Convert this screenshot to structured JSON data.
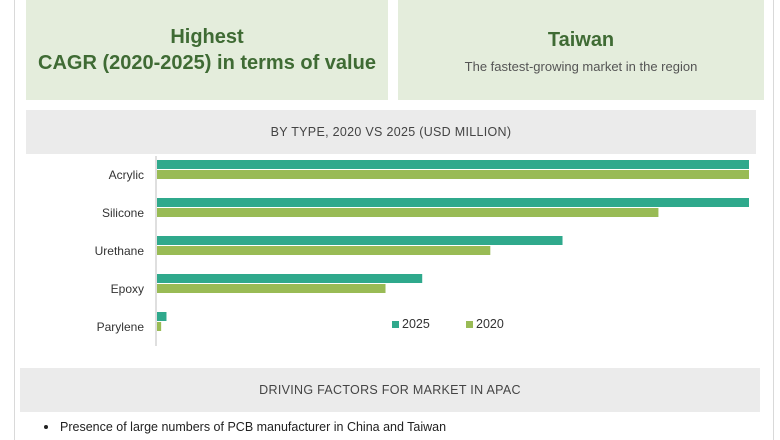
{
  "cards": [
    {
      "title_lines": [
        "Highest",
        "CAGR (2020-2025) in terms of value"
      ],
      "subtitle": ""
    },
    {
      "title_lines": [
        "Taiwan"
      ],
      "subtitle": "The fastest-growing market in the region"
    }
  ],
  "chart_title": "BY TYPE, 2020 VS 2025 (USD MILLION)",
  "chart_data": {
    "type": "bar",
    "orientation": "horizontal",
    "title": "BY TYPE, 2020 VS 2025 (USD MILLION)",
    "categories": [
      "Acrylic",
      "Silicone",
      "Urethane",
      "Epoxy",
      "Parylene"
    ],
    "series": [
      {
        "name": "2025",
        "color": "#2fa98c",
        "values": [
          100,
          100,
          68.5,
          44.8,
          1.6
        ]
      },
      {
        "name": "2020",
        "color": "#99bb55",
        "values": [
          100,
          84.7,
          56.3,
          38.6,
          0.7
        ]
      }
    ],
    "xlim": [
      0,
      100
    ],
    "legend_position": "bottom-right",
    "grid": false,
    "xlabel": "",
    "ylabel": ""
  },
  "drivers": {
    "title": "DRIVING FACTORS FOR MARKET IN APAC",
    "items": [
      "Presence of large numbers of PCB manufacturer in China and Taiwan"
    ]
  }
}
